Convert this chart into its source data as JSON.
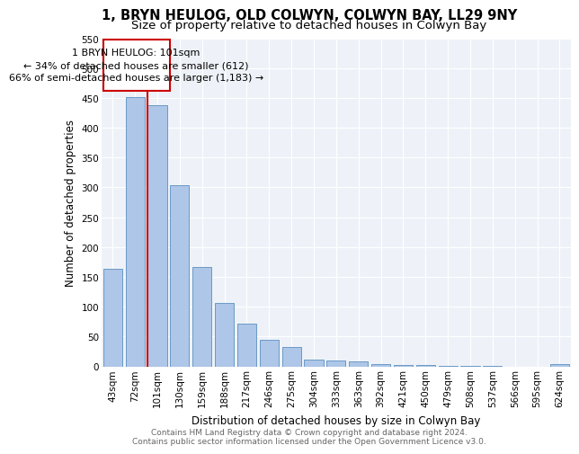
{
  "title": "1, BRYN HEULOG, OLD COLWYN, COLWYN BAY, LL29 9NY",
  "subtitle": "Size of property relative to detached houses in Colwyn Bay",
  "xlabel": "Distribution of detached houses by size in Colwyn Bay",
  "ylabel": "Number of detached properties",
  "categories": [
    "43sqm",
    "72sqm",
    "101sqm",
    "130sqm",
    "159sqm",
    "188sqm",
    "217sqm",
    "246sqm",
    "275sqm",
    "304sqm",
    "333sqm",
    "363sqm",
    "392sqm",
    "421sqm",
    "450sqm",
    "479sqm",
    "508sqm",
    "537sqm",
    "566sqm",
    "595sqm",
    "624sqm"
  ],
  "values": [
    163,
    452,
    437,
    303,
    166,
    106,
    72,
    44,
    33,
    11,
    10,
    8,
    4,
    2,
    2,
    1,
    1,
    1,
    0,
    0,
    4
  ],
  "bar_color": "#aec6e8",
  "bar_edge_color": "#5a8fc0",
  "highlight_index": 2,
  "highlight_line_color": "#cc0000",
  "annotation_box_color": "#cc0000",
  "annotation_line1": "1 BRYN HEULOG: 101sqm",
  "annotation_line2": "← 34% of detached houses are smaller (612)",
  "annotation_line3": "66% of semi-detached houses are larger (1,183) →",
  "ylim": [
    0,
    550
  ],
  "yticks": [
    0,
    50,
    100,
    150,
    200,
    250,
    300,
    350,
    400,
    450,
    500,
    550
  ],
  "bg_color": "#eef2f8",
  "footer_text": "Contains HM Land Registry data © Crown copyright and database right 2024.\nContains public sector information licensed under the Open Government Licence v3.0.",
  "title_fontsize": 10.5,
  "subtitle_fontsize": 9.5,
  "axis_label_fontsize": 8.5,
  "tick_fontsize": 7.5,
  "annotation_fontsize": 8,
  "footer_fontsize": 6.5
}
